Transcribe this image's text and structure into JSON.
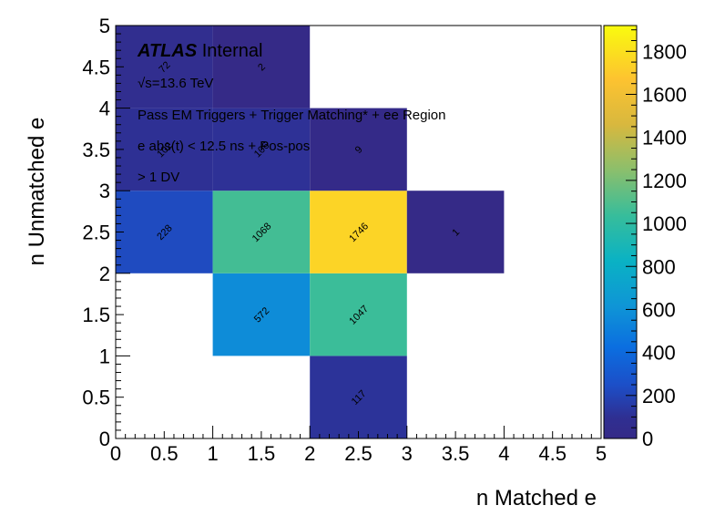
{
  "chart_data": {
    "type": "heatmap",
    "xlabel": "n Matched e",
    "ylabel": "n Unmatched e",
    "xlim": [
      0,
      5
    ],
    "ylim": [
      0,
      5
    ],
    "x_ticks": [
      "0",
      "0.5",
      "1",
      "1.5",
      "2",
      "2.5",
      "3",
      "3.5",
      "4",
      "4.5",
      "5"
    ],
    "y_ticks": [
      "0",
      "0.5",
      "1",
      "1.5",
      "2",
      "2.5",
      "3",
      "3.5",
      "4",
      "4.5",
      "5"
    ],
    "z_range": [
      0,
      1920
    ],
    "colorbar_ticks": [
      "0",
      "200",
      "400",
      "600",
      "800",
      "1000",
      "1200",
      "1400",
      "1600",
      "1800"
    ],
    "cells": [
      {
        "x": 2,
        "y": 0,
        "value": 117,
        "label": "117"
      },
      {
        "x": 1,
        "y": 1,
        "value": 572,
        "label": "572"
      },
      {
        "x": 2,
        "y": 1,
        "value": 1047,
        "label": "1047"
      },
      {
        "x": 0,
        "y": 2,
        "value": 228,
        "label": "228"
      },
      {
        "x": 1,
        "y": 2,
        "value": 1068,
        "label": "1068"
      },
      {
        "x": 2,
        "y": 2,
        "value": 1746,
        "label": "1746"
      },
      {
        "x": 3,
        "y": 2,
        "value": 1,
        "label": "1"
      },
      {
        "x": 0,
        "y": 3,
        "value": 102,
        "label": "102"
      },
      {
        "x": 1,
        "y": 3,
        "value": 106,
        "label": "106"
      },
      {
        "x": 2,
        "y": 3,
        "value": 9,
        "label": "9"
      },
      {
        "x": 0,
        "y": 4,
        "value": 72,
        "label": "72"
      },
      {
        "x": 1,
        "y": 4,
        "value": 2,
        "label": "2"
      }
    ],
    "annotations": {
      "atlas": "ATLAS",
      "internal": "Internal",
      "energy": "√s=13.6 TeV",
      "selection": "Pass EM Triggers + Trigger Matching* + ee Region",
      "timing": "e abs(t) < 12.5 ns + Pos-pos",
      "dv": "> 1 DV"
    }
  }
}
